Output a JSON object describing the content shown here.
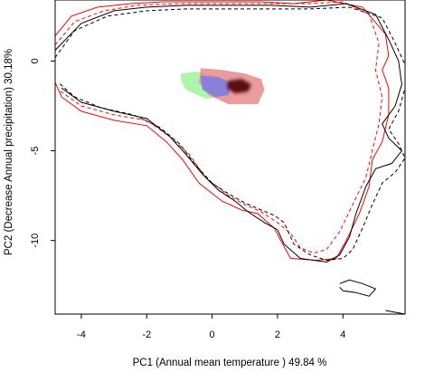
{
  "chart_data": {
    "type": "contour-density",
    "title": "",
    "xlabel": "PC1 (Annual mean temperature ) 49.84 %",
    "ylabel": "PC2 (Decrease Annual precipitation) 30.18%",
    "xlim": [
      -4.8,
      5.9
    ],
    "ylim": [
      -14.1,
      3.4
    ],
    "x_ticks": [
      -4,
      -2,
      0,
      2,
      4
    ],
    "y_ticks": [
      -10,
      -5,
      0
    ],
    "grid": false,
    "legend": "none",
    "colors": {
      "red_env": "#ff0000",
      "black_env": "#000000",
      "niche_red": "#e88a8a",
      "niche_blue": "#7b7be8",
      "niche_green": "#9ef59e",
      "niche_dark": "#4a0505"
    },
    "series": [
      {
        "style": "red-solid",
        "points": [
          [
            -4.8,
            1.4
          ],
          [
            -4.3,
            2.5
          ],
          [
            -3.5,
            3.0
          ],
          [
            -2.5,
            3.2
          ],
          [
            -1.5,
            3.3
          ],
          [
            -0.5,
            3.3
          ],
          [
            0.5,
            3.3
          ],
          [
            1.5,
            3.3
          ],
          [
            2.5,
            3.2
          ],
          [
            3.5,
            3.4
          ],
          [
            4.6,
            3.0
          ],
          [
            5.3,
            1.5
          ],
          [
            5.4,
            0.3
          ],
          [
            5.2,
            -0.5
          ],
          [
            5.4,
            -1.5
          ],
          [
            5.4,
            -3.0
          ],
          [
            5.2,
            -4.5
          ],
          [
            4.9,
            -5.5
          ],
          [
            4.8,
            -7.0
          ],
          [
            4.5,
            -8.5
          ],
          [
            4.1,
            -10.0
          ],
          [
            3.8,
            -11.0
          ],
          [
            3.2,
            -11.1
          ],
          [
            2.4,
            -11.0
          ],
          [
            2.1,
            -10.0
          ],
          [
            1.9,
            -9.3
          ],
          [
            1.7,
            -9.0
          ],
          [
            1.4,
            -8.5
          ],
          [
            0.9,
            -8.3
          ],
          [
            0.3,
            -7.8
          ],
          [
            -0.4,
            -6.8
          ],
          [
            -0.9,
            -5.5
          ],
          [
            -1.4,
            -4.5
          ],
          [
            -2.0,
            -3.6
          ],
          [
            -3.0,
            -3.3
          ],
          [
            -4.0,
            -2.8
          ],
          [
            -4.6,
            -2.0
          ],
          [
            -4.8,
            -1.2
          ]
        ]
      },
      {
        "style": "red-dashed",
        "points": [
          [
            -4.8,
            0.9
          ],
          [
            -4.2,
            2.2
          ],
          [
            -3.3,
            2.8
          ],
          [
            -2.3,
            3.1
          ],
          [
            -1.0,
            3.2
          ],
          [
            0.5,
            3.2
          ],
          [
            1.8,
            3.2
          ],
          [
            3.0,
            3.2
          ],
          [
            4.0,
            3.3
          ],
          [
            4.8,
            2.6
          ],
          [
            5.1,
            1.0
          ],
          [
            5.0,
            -0.5
          ],
          [
            5.2,
            -2.0
          ],
          [
            5.1,
            -3.5
          ],
          [
            4.9,
            -5.0
          ],
          [
            4.7,
            -6.5
          ],
          [
            4.3,
            -8.0
          ],
          [
            3.9,
            -9.5
          ],
          [
            3.5,
            -10.5
          ],
          [
            3.1,
            -10.7
          ],
          [
            2.7,
            -10.4
          ],
          [
            2.4,
            -9.6
          ],
          [
            2.0,
            -9.0
          ],
          [
            1.5,
            -8.4
          ],
          [
            1.0,
            -8.0
          ],
          [
            0.5,
            -7.5
          ],
          [
            -0.2,
            -6.5
          ],
          [
            -0.7,
            -5.2
          ],
          [
            -1.3,
            -4.2
          ],
          [
            -2.0,
            -3.3
          ],
          [
            -3.0,
            -3.0
          ],
          [
            -4.0,
            -2.5
          ],
          [
            -4.7,
            -1.6
          ]
        ]
      },
      {
        "style": "black-solid",
        "points": [
          [
            -4.8,
            0.6
          ],
          [
            -4.0,
            2.1
          ],
          [
            -3.0,
            2.8
          ],
          [
            -2.0,
            3.0
          ],
          [
            -0.8,
            3.1
          ],
          [
            0.6,
            3.1
          ],
          [
            1.8,
            3.1
          ],
          [
            3.0,
            3.0
          ],
          [
            4.1,
            3.2
          ],
          [
            5.0,
            2.6
          ],
          [
            5.4,
            1.2
          ],
          [
            5.7,
            0.0
          ],
          [
            5.8,
            -1.3
          ],
          [
            5.6,
            -2.5
          ],
          [
            5.2,
            -3.5
          ],
          [
            5.4,
            -4.3
          ],
          [
            5.8,
            -5.0
          ],
          [
            5.5,
            -5.7
          ],
          [
            5.0,
            -6.0
          ],
          [
            4.7,
            -7.0
          ],
          [
            4.4,
            -8.5
          ],
          [
            4.2,
            -9.8
          ],
          [
            3.9,
            -10.8
          ],
          [
            3.5,
            -11.2
          ],
          [
            2.7,
            -11.0
          ],
          [
            2.2,
            -10.2
          ],
          [
            2.0,
            -9.4
          ],
          [
            1.6,
            -9.0
          ],
          [
            1.1,
            -8.4
          ],
          [
            0.7,
            -7.8
          ],
          [
            0.2,
            -7.2
          ],
          [
            -0.3,
            -6.3
          ],
          [
            -0.8,
            -5.2
          ],
          [
            -1.3,
            -4.2
          ],
          [
            -2.0,
            -3.2
          ],
          [
            -3.0,
            -2.8
          ],
          [
            -4.0,
            -2.3
          ],
          [
            -4.6,
            -1.5
          ]
        ]
      },
      {
        "style": "black-dashed",
        "points": [
          [
            -4.8,
            0.2
          ],
          [
            -4.2,
            1.7
          ],
          [
            -3.2,
            2.5
          ],
          [
            -2.0,
            2.8
          ],
          [
            -0.8,
            2.9
          ],
          [
            0.6,
            2.9
          ],
          [
            1.8,
            2.9
          ],
          [
            3.0,
            2.9
          ],
          [
            4.2,
            3.0
          ],
          [
            5.2,
            2.4
          ],
          [
            5.6,
            1.0
          ],
          [
            5.9,
            -0.2
          ],
          [
            5.9,
            -1.5
          ],
          [
            5.7,
            -2.8
          ],
          [
            5.4,
            -3.8
          ],
          [
            5.7,
            -4.6
          ],
          [
            5.9,
            -5.4
          ],
          [
            5.6,
            -6.2
          ],
          [
            5.2,
            -6.8
          ],
          [
            4.9,
            -8.0
          ],
          [
            4.6,
            -9.3
          ],
          [
            4.3,
            -10.5
          ],
          [
            4.0,
            -11.0
          ],
          [
            3.5,
            -11.1
          ],
          [
            3.0,
            -10.8
          ],
          [
            2.5,
            -10.2
          ],
          [
            2.2,
            -9.0
          ],
          [
            1.9,
            -8.6
          ],
          [
            1.5,
            -8.3
          ],
          [
            1.0,
            -7.9
          ],
          [
            0.5,
            -7.4
          ],
          [
            0.0,
            -6.8
          ],
          [
            -0.5,
            -5.8
          ],
          [
            -1.0,
            -4.6
          ],
          [
            -1.6,
            -3.7
          ],
          [
            -2.4,
            -3.0
          ],
          [
            -3.4,
            -2.6
          ],
          [
            -4.2,
            -2.0
          ],
          [
            -4.7,
            -1.2
          ]
        ]
      },
      {
        "style": "black-solid",
        "points": [
          [
            3.9,
            -12.4
          ],
          [
            4.2,
            -12.2
          ],
          [
            4.6,
            -12.4
          ],
          [
            5.0,
            -12.7
          ],
          [
            4.8,
            -13.1
          ],
          [
            4.4,
            -12.9
          ],
          [
            4.0,
            -12.8
          ],
          [
            3.9,
            -12.6
          ]
        ]
      },
      {
        "style": "black-solid",
        "points": [
          [
            5.3,
            -13.9
          ],
          [
            5.6,
            -14.0
          ],
          [
            5.9,
            -14.1
          ]
        ]
      }
    ],
    "niche_blobs": [
      {
        "color": "niche_green",
        "points": [
          [
            -0.95,
            -0.7
          ],
          [
            -0.5,
            -0.6
          ],
          [
            0.1,
            -0.8
          ],
          [
            0.4,
            -1.3
          ],
          [
            0.3,
            -2.0
          ],
          [
            -0.2,
            -2.1
          ],
          [
            -0.8,
            -1.6
          ],
          [
            -0.95,
            -1.1
          ]
        ]
      },
      {
        "color": "niche_red",
        "points": [
          [
            -0.35,
            -0.4
          ],
          [
            0.3,
            -0.5
          ],
          [
            1.0,
            -0.7
          ],
          [
            1.5,
            -1.0
          ],
          [
            1.6,
            -1.6
          ],
          [
            1.4,
            -2.4
          ],
          [
            0.5,
            -2.4
          ],
          [
            -0.1,
            -1.9
          ],
          [
            -0.4,
            -1.2
          ]
        ]
      },
      {
        "color": "niche_blue",
        "points": [
          [
            -0.35,
            -0.8
          ],
          [
            0.2,
            -0.9
          ],
          [
            0.6,
            -1.2
          ],
          [
            0.5,
            -1.9
          ],
          [
            0.1,
            -2.0
          ],
          [
            -0.3,
            -1.6
          ]
        ]
      },
      {
        "color": "niche_dark",
        "points": [
          [
            0.5,
            -1.1
          ],
          [
            0.9,
            -1.0
          ],
          [
            1.2,
            -1.3
          ],
          [
            1.1,
            -1.7
          ],
          [
            0.7,
            -1.8
          ],
          [
            0.45,
            -1.5
          ]
        ]
      }
    ]
  }
}
